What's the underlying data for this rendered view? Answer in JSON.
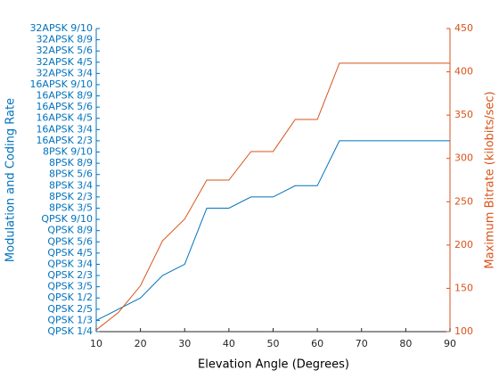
{
  "chart_data": {
    "type": "line",
    "xlabel": "Elevation Angle (Degrees)",
    "ylabel": "Modulation and Coding Rate",
    "y2label": "Maximum Bitrate (kilobits/sec)",
    "x": [
      10,
      15,
      20,
      25,
      30,
      35,
      40,
      45,
      50,
      55,
      60,
      65,
      70,
      75,
      80,
      85,
      90
    ],
    "xlim": [
      10,
      90
    ],
    "xticks": [
      10,
      20,
      30,
      40,
      50,
      60,
      70,
      80,
      90
    ],
    "ylim": [
      1,
      28
    ],
    "yticks": [
      {
        "value": 1,
        "label": "QPSK 1/4"
      },
      {
        "value": 2,
        "label": "QPSK 1/3"
      },
      {
        "value": 3,
        "label": "QPSK 2/5"
      },
      {
        "value": 4,
        "label": "QPSK 1/2"
      },
      {
        "value": 5,
        "label": "QPSK 3/5"
      },
      {
        "value": 6,
        "label": "QPSK 2/3"
      },
      {
        "value": 7,
        "label": "QPSK 3/4"
      },
      {
        "value": 8,
        "label": "QPSK 4/5"
      },
      {
        "value": 9,
        "label": "QPSK 5/6"
      },
      {
        "value": 10,
        "label": "QPSK 8/9"
      },
      {
        "value": 11,
        "label": "QPSK 9/10"
      },
      {
        "value": 12,
        "label": "8PSK 3/5"
      },
      {
        "value": 13,
        "label": "8PSK 2/3"
      },
      {
        "value": 14,
        "label": "8PSK 3/4"
      },
      {
        "value": 15,
        "label": "8PSK 5/6"
      },
      {
        "value": 16,
        "label": "8PSK 8/9"
      },
      {
        "value": 17,
        "label": "8PSK 9/10"
      },
      {
        "value": 18,
        "label": "16APSK 2/3"
      },
      {
        "value": 19,
        "label": "16APSK 3/4"
      },
      {
        "value": 20,
        "label": "16APSK 4/5"
      },
      {
        "value": 21,
        "label": "16APSK 5/6"
      },
      {
        "value": 22,
        "label": "16APSK 8/9"
      },
      {
        "value": 23,
        "label": "16APSK 9/10"
      },
      {
        "value": 24,
        "label": "32APSK 3/4"
      },
      {
        "value": 25,
        "label": "32APSK 4/5"
      },
      {
        "value": 26,
        "label": "32APSK 5/6"
      },
      {
        "value": 27,
        "label": "32APSK 8/9"
      },
      {
        "value": 28,
        "label": "32APSK 9/10"
      }
    ],
    "y2lim": [
      100,
      450
    ],
    "y2ticks": [
      100,
      150,
      200,
      250,
      300,
      350,
      400,
      450
    ],
    "y_color": "#0072bd",
    "y2_color": "#d95319",
    "series": [
      {
        "color": "#0072bd",
        "values": [
          2,
          3,
          4,
          6,
          7,
          12,
          12,
          13,
          13,
          14,
          14,
          18,
          18,
          18,
          18,
          18,
          18
        ]
      },
      {
        "color": "#d95319",
        "axis": "y2",
        "values": [
          102,
          122,
          153,
          205,
          230,
          275,
          275,
          308,
          308,
          345,
          345,
          410,
          410,
          410,
          410,
          410,
          410
        ]
      }
    ]
  }
}
